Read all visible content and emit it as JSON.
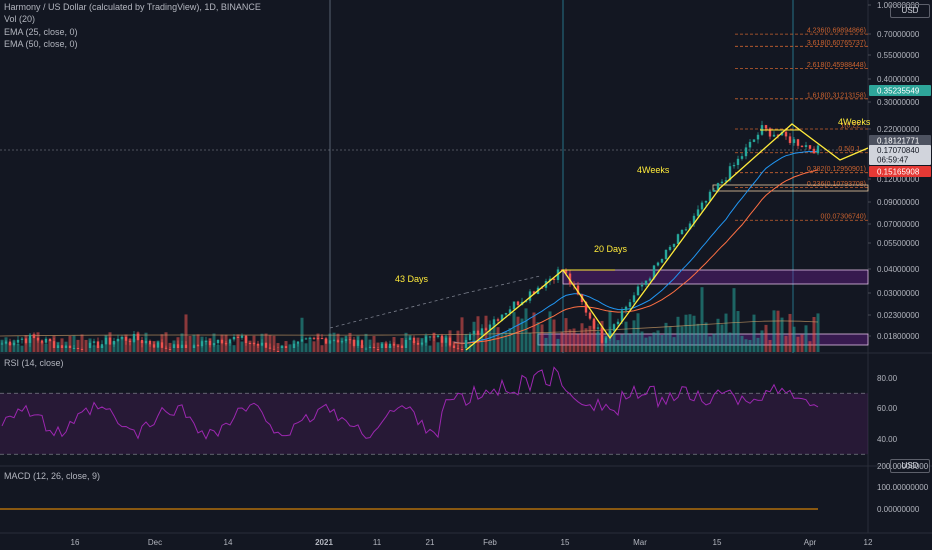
{
  "legend": {
    "symbol": "Harmony / US Dollar (calculated by TradingView), 1D, BINANCE",
    "volume": "Vol (20)",
    "ema25": "EMA (25, close, 0)",
    "ema50": "EMA (50, close, 0)"
  },
  "rsi_title": "RSI (14, close)",
  "macd_title": "MACD (12, 26, close, 9)",
  "currency_badge": "USD",
  "colors": {
    "background": "#131722",
    "up": "#26a69a",
    "down": "#ef5350",
    "ema25": "#2196f3",
    "ema50": "#ff7043",
    "annotation": "#ffeb3b",
    "rsi": "#9c27b0",
    "fib": "#c9622f",
    "band": "#7b1fa2"
  },
  "annotations": {
    "left": "43 Days",
    "middle": "20 Days",
    "right": "4Weeks",
    "top": "4Weeks"
  },
  "price_tags": {
    "high": "0.35235549",
    "upper": "0.18121771",
    "current": "0.17070840",
    "countdown": "06:59:47",
    "low": "0.15165908"
  },
  "chart_data": [
    {
      "type": "candlestick",
      "title": "Harmony / US Dollar (calculated by TradingView), 1D, BINANCE",
      "y_scale": "log",
      "y_ticks": [
        "1.00000000",
        "0.70000000",
        "0.55000000",
        "0.40000000",
        "0.30000000",
        "0.22000000",
        "0.12000000",
        "0.09000000",
        "0.07000000",
        "0.05500000",
        "0.04000000",
        "0.03000000",
        "0.02300000",
        "0.01800000"
      ],
      "x_ticks": [
        "16",
        "Dec",
        "14",
        "2021",
        "11",
        "21",
        "Feb",
        "15",
        "Mar",
        "15",
        "Apr",
        "12"
      ],
      "series": [
        {
          "name": "EMA (25, close, 0)",
          "color": "#2196f3"
        },
        {
          "name": "EMA (50, close, 0)",
          "color": "#ff7043"
        }
      ],
      "key_points": {
        "start_low": 0.0165,
        "swing_high_feb": 0.04,
        "pullback_low_feb": 0.0175,
        "peak_mar": 0.22,
        "last": 0.1707
      },
      "fibonacci": [
        {
          "label": "4.236(0.69894866)"
        },
        {
          "label": "3.618(0.60765737)"
        },
        {
          "label": "2.618(0.45988448)"
        },
        {
          "label": "1.618(0.31213158)"
        },
        {
          "label": "1(0.22..."
        },
        {
          "label": "0.5(0.1..."
        },
        {
          "label": "0.382(0.12950901)"
        },
        {
          "label": "0.236(0.10793708)"
        },
        {
          "label": "0(0.07306740)"
        }
      ]
    },
    {
      "type": "line",
      "title": "RSI (14, close)",
      "y_ticks": [
        "80.00",
        "60.00",
        "40.00"
      ],
      "bands": {
        "upper": 70,
        "lower": 30
      },
      "last": 63
    },
    {
      "type": "line",
      "title": "MACD (12, 26, close, 9)",
      "y_ticks": [
        "200.00000000",
        "100.00000000",
        "0.00000000"
      ],
      "last": 0
    }
  ]
}
